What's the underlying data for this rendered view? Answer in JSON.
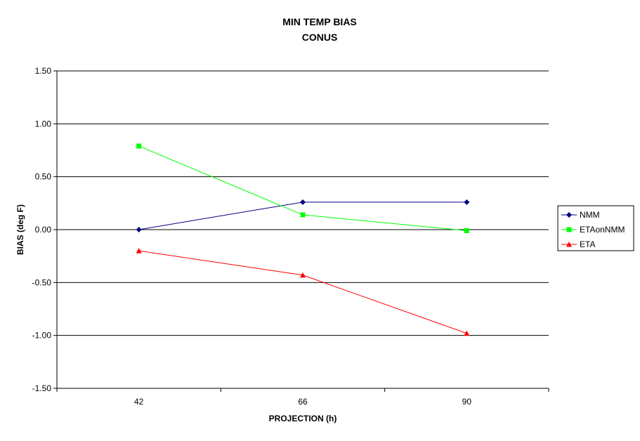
{
  "chart_data": {
    "type": "line",
    "title": "MIN TEMP BIAS",
    "subtitle": "CONUS",
    "xlabel": "PROJECTION (h)",
    "ylabel": "BIAS (deg F)",
    "categories": [
      "42",
      "66",
      "90"
    ],
    "ylim": [
      -1.5,
      1.5
    ],
    "yticks": [
      "1.50",
      "1.00",
      "0.50",
      "0.00",
      "-0.50",
      "-1.00",
      "-1.50"
    ],
    "grid": "horizontal",
    "legend_position": "right",
    "series": [
      {
        "name": "NMM",
        "values": [
          0.0,
          0.26,
          0.26
        ],
        "color": "#000080",
        "marker": "diamond"
      },
      {
        "name": "ETAonNMM",
        "values": [
          0.79,
          0.14,
          -0.01
        ],
        "color": "#00ff00",
        "marker": "square"
      },
      {
        "name": "ETA",
        "values": [
          -0.2,
          -0.43,
          -0.98
        ],
        "color": "#ff0000",
        "marker": "triangle"
      }
    ]
  }
}
